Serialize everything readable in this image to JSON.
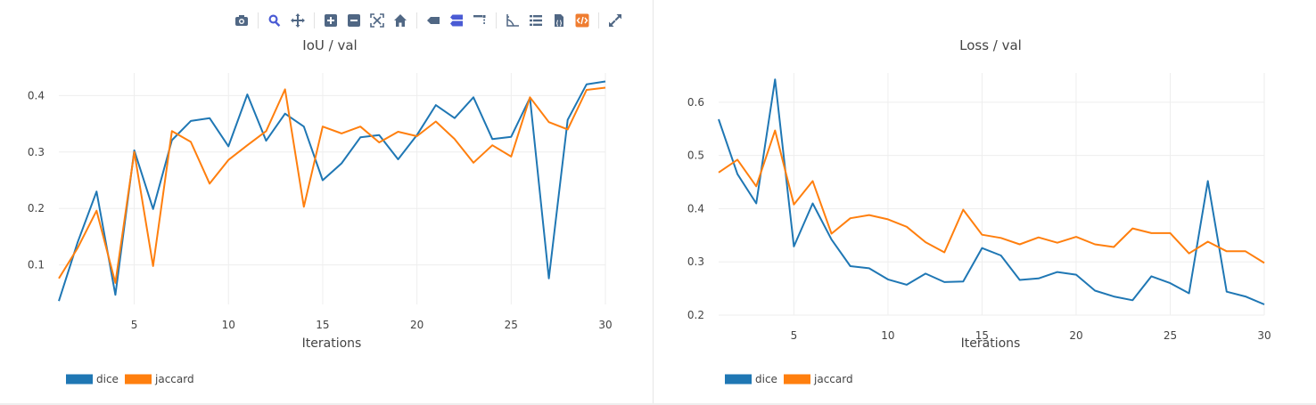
{
  "chart_data": [
    {
      "type": "line",
      "title": "IoU / val",
      "xlabel": "Iterations",
      "ylabel": "",
      "xlim": [
        1,
        30
      ],
      "ylim": [
        0.03,
        0.44
      ],
      "xticks": [
        5,
        10,
        15,
        20,
        25,
        30
      ],
      "yticks": [
        0.1,
        0.2,
        0.3,
        0.4
      ],
      "ytick_labels": [
        "0.1",
        "0.2",
        "0.3",
        "0.4"
      ],
      "grid": true,
      "legend_position": "bottom-left",
      "x": [
        1,
        2,
        3,
        4,
        5,
        6,
        7,
        8,
        9,
        10,
        11,
        12,
        13,
        14,
        15,
        16,
        17,
        18,
        19,
        20,
        21,
        22,
        23,
        24,
        25,
        26,
        27,
        28,
        29,
        30
      ],
      "series": [
        {
          "name": "dice",
          "color": "#1f77b4",
          "values": [
            0.036,
            0.14,
            0.23,
            0.047,
            0.303,
            0.199,
            0.321,
            0.355,
            0.36,
            0.31,
            0.402,
            0.32,
            0.368,
            0.345,
            0.25,
            0.28,
            0.326,
            0.33,
            0.287,
            0.33,
            0.383,
            0.36,
            0.397,
            0.323,
            0.327,
            0.396,
            0.076,
            0.357,
            0.42,
            0.425
          ]
        },
        {
          "name": "jaccard",
          "color": "#ff7f0e",
          "values": [
            0.076,
            0.13,
            0.196,
            0.068,
            0.3,
            0.098,
            0.337,
            0.318,
            0.244,
            0.286,
            0.312,
            0.337,
            0.411,
            0.203,
            0.345,
            0.333,
            0.345,
            0.317,
            0.336,
            0.328,
            0.354,
            0.323,
            0.281,
            0.312,
            0.292,
            0.397,
            0.353,
            0.34,
            0.41,
            0.414
          ]
        }
      ]
    },
    {
      "type": "line",
      "title": "Loss / val",
      "xlabel": "Iterations",
      "ylabel": "",
      "xlim": [
        1,
        30
      ],
      "ylim": [
        0.2,
        0.655
      ],
      "xticks": [
        5,
        10,
        15,
        20,
        25,
        30
      ],
      "yticks": [
        0.2,
        0.3,
        0.4,
        0.5,
        0.6
      ],
      "ytick_labels": [
        "0.2",
        "0.3",
        "0.4",
        "0.5",
        "0.6"
      ],
      "grid": true,
      "legend_position": "bottom-left",
      "x": [
        1,
        2,
        3,
        4,
        5,
        6,
        7,
        8,
        9,
        10,
        11,
        12,
        13,
        14,
        15,
        16,
        17,
        18,
        19,
        20,
        21,
        22,
        23,
        24,
        25,
        26,
        27,
        28,
        29,
        30
      ],
      "series": [
        {
          "name": "dice",
          "color": "#1f77b4",
          "values": [
            0.568,
            0.465,
            0.41,
            0.643,
            0.329,
            0.41,
            0.342,
            0.292,
            0.288,
            0.267,
            0.257,
            0.278,
            0.262,
            0.263,
            0.326,
            0.312,
            0.266,
            0.269,
            0.281,
            0.276,
            0.246,
            0.235,
            0.228,
            0.273,
            0.26,
            0.241,
            0.452,
            0.244,
            0.235,
            0.22
          ]
        },
        {
          "name": "jaccard",
          "color": "#ff7f0e",
          "values": [
            0.468,
            0.492,
            0.442,
            0.547,
            0.408,
            0.452,
            0.353,
            0.382,
            0.388,
            0.38,
            0.366,
            0.337,
            0.318,
            0.398,
            0.351,
            0.345,
            0.333,
            0.346,
            0.336,
            0.347,
            0.333,
            0.328,
            0.363,
            0.354,
            0.354,
            0.316,
            0.338,
            0.32,
            0.32,
            0.298
          ]
        }
      ]
    }
  ],
  "toolbar": {
    "icons": [
      "camera-icon",
      "zoom-icon",
      "pan-icon",
      "zoom-in-icon",
      "zoom-out-icon",
      "autoscale-icon",
      "home-icon",
      "spike-single-icon",
      "spike-compare-icon",
      "spike-lines-icon",
      "axes-icon",
      "list-icon",
      "json-icon",
      "code-icon",
      "fullscreen-icon"
    ],
    "icon_color": "#506784",
    "active_color": "#4a5bd4",
    "accent_color": "#ef7d31"
  }
}
